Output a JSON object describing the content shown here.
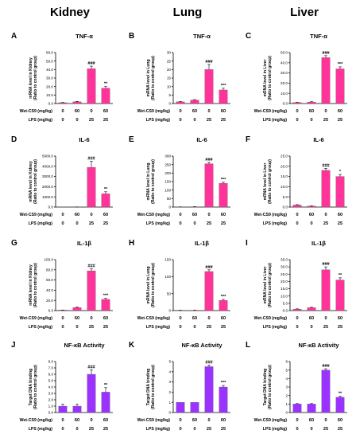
{
  "column_headers": [
    "Kidney",
    "Lung",
    "Liver"
  ],
  "row_labels": {
    "wet": "Wet-CS9 (mg/kg)",
    "lps": "LPS (mg/kg)"
  },
  "groups": {
    "wet": [
      "0",
      "60",
      "0",
      "60"
    ],
    "lps": [
      "0",
      "0",
      "25",
      "25"
    ]
  },
  "colors": {
    "pink": "#ff3399",
    "purple": "#9a33ff"
  },
  "chart_data": [
    {
      "letter": "A",
      "type": "bar",
      "title": "TNF-α",
      "ylabel": [
        "mRNA level in Kidney",
        "(Ratio to control group)"
      ],
      "ylim": [
        0,
        60
      ],
      "yticks": [
        "0.0",
        "10.0",
        "20.0",
        "30.0",
        "40.0",
        "50.0",
        "60.0"
      ],
      "values": [
        1,
        2,
        41,
        18
      ],
      "errors": [
        0.3,
        0.5,
        3,
        2
      ],
      "sig": [
        "",
        "",
        "###",
        "**"
      ],
      "color": "pink"
    },
    {
      "letter": "B",
      "type": "bar",
      "title": "TNF-α",
      "ylabel": [
        "mRNA level in Lung",
        "(Ratio to control group)"
      ],
      "ylim": [
        0,
        30
      ],
      "yticks": [
        "0",
        "5",
        "10",
        "15",
        "20",
        "25",
        "30"
      ],
      "values": [
        1,
        2,
        20,
        8
      ],
      "errors": [
        0.2,
        0.3,
        3,
        1
      ],
      "sig": [
        "",
        "",
        "###",
        "***"
      ],
      "color": "pink"
    },
    {
      "letter": "C",
      "type": "bar",
      "title": "TNF-α",
      "ylabel": [
        "mRNA level in Liver",
        "(Ratio to control group)"
      ],
      "ylim": [
        0,
        50
      ],
      "yticks": [
        "0.0",
        "10.0",
        "20.0",
        "30.0",
        "40.0",
        "50.0"
      ],
      "values": [
        1,
        1.5,
        45,
        34
      ],
      "errors": [
        0.2,
        0.3,
        2,
        2
      ],
      "sig": [
        "",
        "",
        "###",
        "***"
      ],
      "color": "pink"
    },
    {
      "letter": "D",
      "type": "bar",
      "title": "IL-6",
      "ylabel": [
        "mRNA level in Kidney",
        "(Ratio to control group)"
      ],
      "ylim": [
        0,
        5000
      ],
      "yticks": [
        "0.0",
        "1000.0",
        "2000.0",
        "3000.0",
        "4000.0",
        "5000.0"
      ],
      "values": [
        1,
        5,
        3900,
        1300
      ],
      "errors": [
        0,
        2,
        600,
        200
      ],
      "sig": [
        "",
        "",
        "###",
        "**"
      ],
      "color": "pink"
    },
    {
      "letter": "E",
      "type": "bar",
      "title": "IL-6",
      "ylabel": [
        "mRNA level in Lung",
        "(Ratio to control group)"
      ],
      "ylim": [
        0,
        300
      ],
      "yticks": [
        "0",
        "50",
        "100",
        "150",
        "200",
        "250",
        "300"
      ],
      "values": [
        1,
        2,
        255,
        140
      ],
      "errors": [
        0.2,
        0.3,
        8,
        6
      ],
      "sig": [
        "",
        "",
        "###",
        "***"
      ],
      "color": "pink"
    },
    {
      "letter": "F",
      "type": "bar",
      "title": "IL-6",
      "ylabel": [
        "mRNA level in Liver",
        "(Ratio to control group)"
      ],
      "ylim": [
        0,
        25
      ],
      "yticks": [
        "0.0",
        "5.0",
        "10.0",
        "15.0",
        "20.0",
        "25.0"
      ],
      "values": [
        1,
        0.5,
        18,
        15
      ],
      "errors": [
        0.2,
        0.1,
        1,
        1
      ],
      "sig": [
        "",
        "",
        "###",
        "*"
      ],
      "color": "pink"
    },
    {
      "letter": "G",
      "type": "bar",
      "title": "IL-1β",
      "ylabel": [
        "mRNA level in Kidney",
        "(Ratio to control group)"
      ],
      "ylim": [
        0,
        100
      ],
      "yticks": [
        "0.0",
        "20.0",
        "40.0",
        "60.0",
        "80.0",
        "100.0"
      ],
      "values": [
        1,
        6,
        78,
        22
      ],
      "errors": [
        0.2,
        1,
        4,
        2
      ],
      "sig": [
        "",
        "",
        "###",
        "***"
      ],
      "color": "pink"
    },
    {
      "letter": "H",
      "type": "bar",
      "title": "IL-1β",
      "ylabel": [
        "mRNA level in Lung",
        "(Ratio to control group)"
      ],
      "ylim": [
        0,
        150
      ],
      "yticks": [
        "0",
        "50",
        "100",
        "150"
      ],
      "values": [
        1,
        1,
        115,
        30
      ],
      "errors": [
        0.1,
        0.2,
        5,
        3
      ],
      "sig": [
        "",
        "",
        "###",
        "***"
      ],
      "color": "pink"
    },
    {
      "letter": "I",
      "type": "bar",
      "title": "IL-1β",
      "ylabel": [
        "mRNA level in Liver",
        "(Ratio to control group)"
      ],
      "ylim": [
        0,
        35
      ],
      "yticks": [
        "0.0",
        "5.0",
        "10.0",
        "15.0",
        "20.0",
        "25.0",
        "30.0",
        "35.0"
      ],
      "values": [
        1,
        2,
        28,
        21
      ],
      "errors": [
        0.2,
        0.3,
        2,
        1.5
      ],
      "sig": [
        "",
        "",
        "###",
        "**"
      ],
      "color": "pink"
    },
    {
      "letter": "J",
      "type": "bar",
      "title": "NF-κB Activity",
      "ylabel": [
        "Target DNA binding",
        "(Ratio to control group)"
      ],
      "ylim": [
        0,
        8
      ],
      "yticks": [
        "0.0",
        "1.0",
        "2.0",
        "3.0",
        "4.0",
        "5.0",
        "6.0",
        "7.0",
        "8.0"
      ],
      "values": [
        1,
        1,
        6,
        3.2
      ],
      "errors": [
        0.3,
        0.3,
        0.7,
        0.7
      ],
      "sig": [
        "",
        "",
        "###",
        "**"
      ],
      "color": "purple"
    },
    {
      "letter": "K",
      "type": "bar",
      "title": "NF-κB Activity",
      "ylabel": [
        "Target DNA binding",
        "(Ratio to control group)"
      ],
      "ylim": [
        0,
        5
      ],
      "yticks": [
        "0",
        "1",
        "2",
        "3",
        "4",
        "5"
      ],
      "values": [
        1,
        1,
        4.5,
        2.5
      ],
      "errors": [
        0,
        0,
        0.15,
        0.15
      ],
      "sig": [
        "",
        "",
        "###",
        "***"
      ],
      "color": "purple"
    },
    {
      "letter": "L",
      "type": "bar",
      "title": "NF-κB Activity",
      "ylabel": [
        "Target DNA binding",
        "(Ratio to control group)"
      ],
      "ylim": [
        0,
        6
      ],
      "yticks": [
        "0",
        "1",
        "2",
        "3",
        "4",
        "5",
        "6"
      ],
      "values": [
        1,
        1,
        5,
        1.8
      ],
      "errors": [
        0.05,
        0.05,
        0.15,
        0.1
      ],
      "sig": [
        "",
        "",
        "###",
        "**"
      ],
      "color": "purple"
    }
  ]
}
